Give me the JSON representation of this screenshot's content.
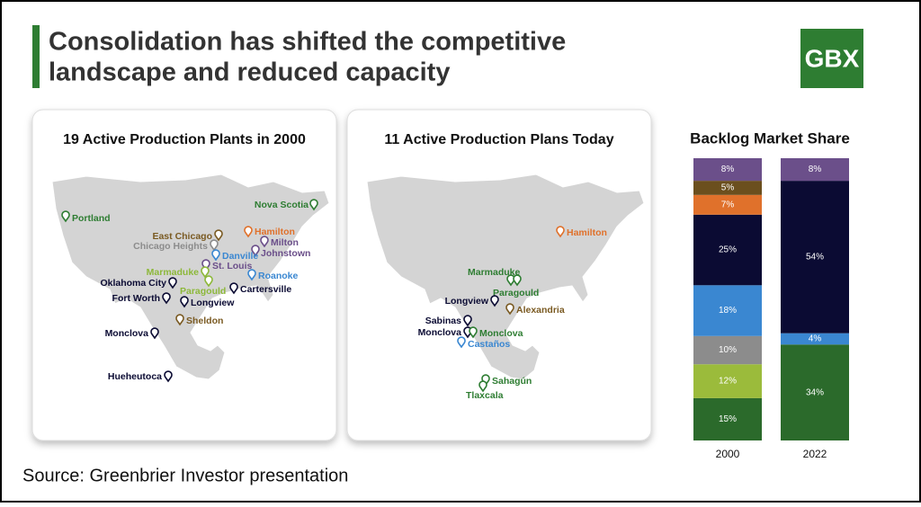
{
  "header": {
    "title_lines": [
      "Consolidation has shifted the competitive",
      "landscape and reduced capacity"
    ],
    "logo": "GBX"
  },
  "maps": [
    {
      "title": "19 Active Production Plants in 2000",
      "plants": [
        {
          "name": "Nova Scotia",
          "color": "#2e7d32"
        },
        {
          "name": "Portland",
          "color": "#2e7d32"
        },
        {
          "name": "Hamilton",
          "color": "#e0712b"
        },
        {
          "name": "East Chicago",
          "color": "#7a5a22"
        },
        {
          "name": "Milton",
          "color": "#6b4f8a"
        },
        {
          "name": "Chicago Heights",
          "color": "#8c8c8c"
        },
        {
          "name": "Johnstown",
          "color": "#6b4f8a"
        },
        {
          "name": "Danville",
          "color": "#3a87d1"
        },
        {
          "name": "St. Louis",
          "color": "#6b4f8a"
        },
        {
          "name": "Marmaduke",
          "color": "#8db83a"
        },
        {
          "name": "Roanoke",
          "color": "#3a87d1"
        },
        {
          "name": "Oklahoma City",
          "color": "#0b0b33"
        },
        {
          "name": "Paragould",
          "color": "#8db83a"
        },
        {
          "name": "Cartersville",
          "color": "#0b0b33"
        },
        {
          "name": "Fort Worth",
          "color": "#0b0b33"
        },
        {
          "name": "Longview",
          "color": "#0b0b33"
        },
        {
          "name": "Sheldon",
          "color": "#7a5a22"
        },
        {
          "name": "Monclova",
          "color": "#0b0b33"
        },
        {
          "name": "Hueheutoca",
          "color": "#0b0b33"
        }
      ]
    },
    {
      "title": "11 Active Production Plans Today",
      "plants": [
        {
          "name": "Hamilton",
          "color": "#e0712b"
        },
        {
          "name": "Marmaduke",
          "color": "#2e7d32"
        },
        {
          "name": "Paragould",
          "color": "#2e7d32"
        },
        {
          "name": "Longview",
          "color": "#0b0b33"
        },
        {
          "name": "Alexandria",
          "color": "#7a5a22"
        },
        {
          "name": "Sabinas",
          "color": "#0b0b33"
        },
        {
          "name": "Monclova",
          "color": "#0b0b33"
        },
        {
          "name": "Monclova",
          "color": "#2e7d32"
        },
        {
          "name": "Castaños",
          "color": "#3a87d1"
        },
        {
          "name": "Sahagún",
          "color": "#2e7d32"
        },
        {
          "name": "Tlaxcala",
          "color": "#2e7d32"
        }
      ]
    }
  ],
  "chart_data": {
    "type": "stacked_bar",
    "title": "Backlog Market Share",
    "categories": [
      "2000",
      "2022"
    ],
    "ylim": [
      0,
      100
    ],
    "series": [
      {
        "color": "#2b6a2b",
        "values": [
          15,
          34
        ],
        "value_labels": [
          "15%",
          "34%"
        ]
      },
      {
        "color": "#9bbb3b",
        "values": [
          12,
          null
        ],
        "value_labels": [
          "12%",
          null
        ]
      },
      {
        "color": "#8c8c8c",
        "values": [
          10,
          null
        ],
        "value_labels": [
          "10%",
          null
        ]
      },
      {
        "color": "#3a87d1",
        "values": [
          18,
          4
        ],
        "value_labels": [
          "18%",
          "4%"
        ]
      },
      {
        "color": "#0b0b33",
        "values": [
          25,
          54
        ],
        "value_labels": [
          "25%",
          "54%"
        ]
      },
      {
        "color": "#e0712b",
        "values": [
          7,
          null
        ],
        "value_labels": [
          "7%",
          null
        ]
      },
      {
        "color": "#6b4f1e",
        "values": [
          5,
          null
        ],
        "value_labels": [
          "5%",
          null
        ]
      },
      {
        "color": "#6b4f8a",
        "values": [
          8,
          8
        ],
        "value_labels": [
          "8%",
          "8%"
        ]
      }
    ]
  },
  "source": "Source: Greenbrier Investor presentation"
}
